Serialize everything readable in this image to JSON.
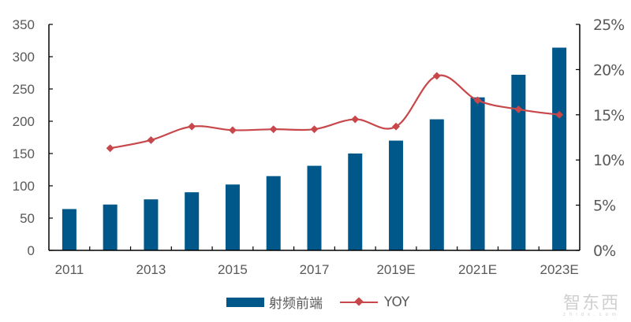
{
  "chart_data": {
    "type": "bar+line",
    "title": "",
    "categories": [
      "2011",
      "2012",
      "2013",
      "2014",
      "2015",
      "2016",
      "2017",
      "2018",
      "2019E",
      "2020E",
      "2021E",
      "2022E",
      "2023E"
    ],
    "x_tick_labels": [
      "2011",
      "2013",
      "2015",
      "2017",
      "2019E",
      "2021E",
      "2023E"
    ],
    "series": [
      {
        "name": "射频前端",
        "type": "bar",
        "axis": "left",
        "color": "#00578A",
        "values": [
          64,
          71,
          79,
          90,
          102,
          115,
          131,
          150,
          170,
          203,
          237,
          272,
          314
        ]
      },
      {
        "name": "YOY",
        "type": "line",
        "axis": "right",
        "color": "#C8474A",
        "marker": "diamond",
        "values": [
          null,
          11.3,
          12.2,
          13.7,
          13.3,
          13.4,
          13.4,
          14.5,
          13.7,
          19.3,
          16.6,
          15.6,
          15.0
        ]
      }
    ],
    "left_axis": {
      "ylim": [
        0,
        350
      ],
      "ticks": [
        "0",
        "50",
        "100",
        "150",
        "200",
        "250",
        "300",
        "350"
      ]
    },
    "right_axis": {
      "ylim": [
        0,
        25
      ],
      "ticks": [
        "0%",
        "5%",
        "10%",
        "15%",
        "20%",
        "25%"
      ]
    },
    "xlabel": "",
    "ylabel": "",
    "grid": false,
    "legend_position": "bottom"
  },
  "legend": {
    "bar_label": "射频前端",
    "line_label": "YOY"
  },
  "watermark": {
    "main": "智东西",
    "sub": "zhidx.com"
  }
}
